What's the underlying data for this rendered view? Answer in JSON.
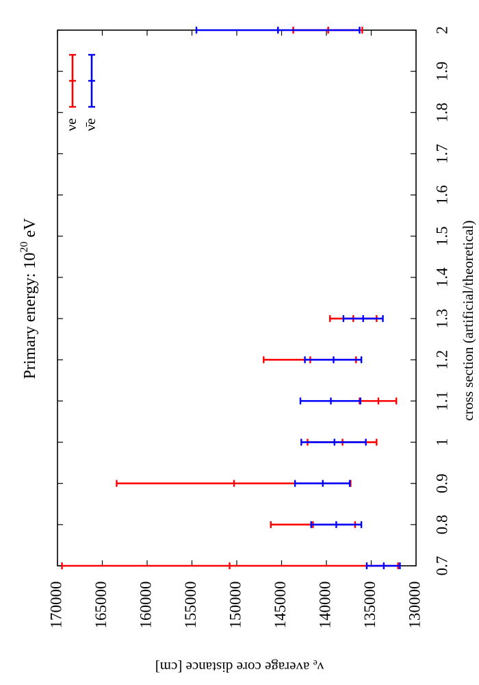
{
  "chart_data": {
    "type": "errorbar",
    "title": "Primary energy: 10",
    "title_superscript": "20",
    "title_suffix": " eV",
    "xlabel": "cross section (artificial/theoretical)",
    "ylabel_symbol": "ν",
    "ylabel_subscript": "e",
    "ylabel_text": " average core distance [cm]",
    "xlim": [
      0.7,
      2.0
    ],
    "ylim": [
      130000,
      170000
    ],
    "x_ticks": [
      "0.7",
      "0.8",
      "0.9",
      "1",
      "1.1",
      "1.2",
      "1.3",
      "1.4",
      "1.5",
      "1.6",
      "1.7",
      "1.8",
      "1.9",
      "2"
    ],
    "y_ticks": [
      "170000",
      "165000",
      "160000",
      "155000",
      "150000",
      "145000",
      "140000",
      "135000",
      "130000"
    ],
    "legend_placement": "top-right",
    "series": [
      {
        "name": "νe",
        "color": "#ff0000",
        "points": [
          {
            "x": 0.7,
            "y": 150800,
            "low": 132000,
            "high": 169500
          },
          {
            "x": 0.8,
            "y": 141500,
            "low": 136800,
            "high": 146200
          },
          {
            "x": 0.9,
            "y": 150300,
            "low": 137300,
            "high": 163400
          },
          {
            "x": 1.0,
            "y": 138200,
            "low": 134400,
            "high": 142100
          },
          {
            "x": 1.1,
            "y": 134200,
            "low": 132200,
            "high": 136300
          },
          {
            "x": 1.2,
            "y": 141800,
            "low": 136700,
            "high": 147000
          },
          {
            "x": 1.3,
            "y": 137000,
            "low": 134400,
            "high": 139600
          },
          {
            "x": 2.0,
            "y": 139800,
            "low": 136000,
            "high": 143700
          }
        ]
      },
      {
        "name": "ν̄e",
        "color": "#0000ff",
        "points": [
          {
            "x": 0.7,
            "y": 133600,
            "low": 131800,
            "high": 135500
          },
          {
            "x": 0.8,
            "y": 138900,
            "low": 136100,
            "high": 141700
          },
          {
            "x": 0.9,
            "y": 140400,
            "low": 137400,
            "high": 143500
          },
          {
            "x": 1.0,
            "y": 139100,
            "low": 135600,
            "high": 142800
          },
          {
            "x": 1.1,
            "y": 139500,
            "low": 136200,
            "high": 142900
          },
          {
            "x": 1.2,
            "y": 139200,
            "low": 136100,
            "high": 142400
          },
          {
            "x": 1.3,
            "y": 135900,
            "low": 133700,
            "high": 138100
          },
          {
            "x": 2.0,
            "y": 145400,
            "low": 136300,
            "high": 154500
          }
        ]
      }
    ]
  }
}
